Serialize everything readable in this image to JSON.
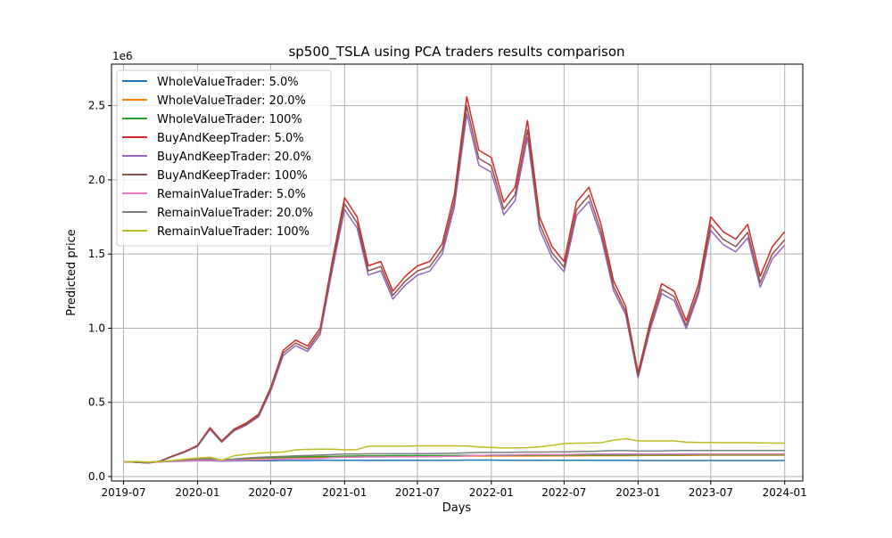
{
  "chart_data": {
    "type": "line",
    "title": "sp500_TSLA using PCA traders results comparison",
    "xlabel": "Days",
    "ylabel": "Predicted price",
    "y_offset_label": "1e6",
    "grid": true,
    "legend_position": "top-left",
    "xlim": [
      "2019-06-01",
      "2024-02-15"
    ],
    "ylim": [
      -30000,
      2780000
    ],
    "x_ticks": [
      "2019-07",
      "2020-01",
      "2020-07",
      "2021-01",
      "2021-07",
      "2022-01",
      "2022-07",
      "2023-01",
      "2023-07",
      "2024-01"
    ],
    "x_tick_dates": [
      "2019-07-01",
      "2020-01-01",
      "2020-07-01",
      "2021-01-01",
      "2021-07-01",
      "2022-01-01",
      "2022-07-01",
      "2023-01-01",
      "2023-07-01",
      "2024-01-01"
    ],
    "y_ticks": [
      0,
      500000,
      1000000,
      1500000,
      2000000,
      2500000
    ],
    "y_tick_labels": [
      "0.0",
      "0.5",
      "1.0",
      "1.5",
      "2.0",
      "2.5"
    ],
    "x": [
      "2019-07-01",
      "2019-08-01",
      "2019-09-01",
      "2019-10-01",
      "2019-11-01",
      "2019-12-01",
      "2020-01-01",
      "2020-02-01",
      "2020-03-01",
      "2020-04-01",
      "2020-05-01",
      "2020-06-01",
      "2020-07-01",
      "2020-08-01",
      "2020-09-01",
      "2020-10-01",
      "2020-11-01",
      "2020-12-01",
      "2021-01-01",
      "2021-02-01",
      "2021-03-01",
      "2021-04-01",
      "2021-05-01",
      "2021-06-01",
      "2021-07-01",
      "2021-08-01",
      "2021-09-01",
      "2021-10-01",
      "2021-11-01",
      "2021-12-01",
      "2022-01-01",
      "2022-02-01",
      "2022-03-01",
      "2022-04-01",
      "2022-05-01",
      "2022-06-01",
      "2022-07-01",
      "2022-08-01",
      "2022-09-01",
      "2022-10-01",
      "2022-11-01",
      "2022-12-01",
      "2023-01-01",
      "2023-02-01",
      "2023-03-01",
      "2023-04-01",
      "2023-05-01",
      "2023-06-01",
      "2023-07-01",
      "2023-08-01",
      "2023-09-01",
      "2023-10-01",
      "2023-11-01",
      "2023-12-01",
      "2024-01-01"
    ],
    "series": [
      {
        "name": "WholeValueTrader: 5.0%",
        "color": "#1f77b4",
        "values": [
          100000,
          99000,
          98000,
          100000,
          102000,
          104000,
          106000,
          106000,
          104000,
          105000,
          106000,
          107000,
          107000,
          108000,
          108000,
          108000,
          109000,
          109000,
          110000,
          110000,
          110000,
          110000,
          110000,
          110000,
          110000,
          110000,
          110000,
          110000,
          111000,
          111000,
          111000,
          110000,
          110000,
          110000,
          110000,
          110000,
          110000,
          110000,
          110000,
          110000,
          110000,
          110000,
          108000,
          108000,
          108000,
          108000,
          108000,
          108000,
          108000,
          108000,
          108000,
          108000,
          108000,
          108000,
          108000
        ]
      },
      {
        "name": "WholeValueTrader: 20.0%",
        "color": "#ff7f0e",
        "values": [
          100000,
          98000,
          95000,
          99000,
          105000,
          110000,
          115000,
          118000,
          108000,
          112000,
          118000,
          122000,
          124000,
          126000,
          128000,
          128000,
          130000,
          132000,
          134000,
          134000,
          136000,
          136000,
          136000,
          137000,
          137000,
          137000,
          137000,
          137000,
          138000,
          138000,
          138000,
          138000,
          139000,
          139000,
          139000,
          140000,
          140000,
          140000,
          141000,
          141000,
          141000,
          141000,
          142000,
          143000,
          143000,
          143000,
          143000,
          144000,
          144000,
          144000,
          144000,
          144000,
          144000,
          144000,
          144000
        ]
      },
      {
        "name": "WholeValueTrader: 100%",
        "color": "#2ca02c",
        "values": [
          100000,
          98000,
          95000,
          99000,
          106000,
          112000,
          118000,
          120000,
          110000,
          116000,
          122000,
          126000,
          128000,
          130000,
          132000,
          134000,
          135000,
          136000,
          138000,
          139000,
          140000,
          140000,
          141000,
          141000,
          142000,
          142000,
          142000,
          142000,
          143000,
          143000,
          143000,
          143000,
          143000,
          144000,
          144000,
          144000,
          144000,
          145000,
          145000,
          145000,
          145000,
          145000,
          146000,
          146000,
          146000,
          146000,
          147000,
          147000,
          147000,
          147000,
          147000,
          147000,
          147000,
          147000,
          147000
        ]
      },
      {
        "name": "BuyAndKeepTrader: 5.0%",
        "color": "#d62728",
        "values": [
          100000,
          96000,
          92000,
          105000,
          140000,
          170000,
          210000,
          330000,
          240000,
          320000,
          360000,
          420000,
          600000,
          850000,
          920000,
          880000,
          1000000,
          1450000,
          1880000,
          1750000,
          1420000,
          1450000,
          1250000,
          1350000,
          1420000,
          1450000,
          1570000,
          1900000,
          2560000,
          2200000,
          2150000,
          1850000,
          1950000,
          2400000,
          1750000,
          1550000,
          1450000,
          1850000,
          1950000,
          1700000,
          1320000,
          1150000,
          700000,
          1050000,
          1300000,
          1250000,
          1050000,
          1300000,
          1750000,
          1650000,
          1600000,
          1700000,
          1350000,
          1550000,
          1650000
        ]
      },
      {
        "name": "BuyAndKeepTrader: 20.0%",
        "color": "#9467bd",
        "values": [
          100000,
          96000,
          92000,
          104000,
          136000,
          165000,
          203000,
          318000,
          231000,
          308000,
          346000,
          403000,
          575000,
          815000,
          882000,
          843000,
          958000,
          1389000,
          1800000,
          1675000,
          1358000,
          1387000,
          1196000,
          1291000,
          1357000,
          1385000,
          1499000,
          1814000,
          2444000,
          2099000,
          2051000,
          1764000,
          1859000,
          2287000,
          1667000,
          1476000,
          1380000,
          1760000,
          1855000,
          1617000,
          1255000,
          1093000,
          665000,
          997000,
          1234000,
          1186000,
          996000,
          1233000,
          1659000,
          1563000,
          1515000,
          1609000,
          1277000,
          1466000,
          1560000
        ]
      },
      {
        "name": "BuyAndKeepTrader: 100%",
        "color": "#8c564b",
        "values": [
          100000,
          96000,
          92000,
          104000,
          138000,
          167000,
          206000,
          324000,
          235000,
          313000,
          352000,
          411000,
          587000,
          832000,
          900000,
          860000,
          978000,
          1418000,
          1838000,
          1710000,
          1387000,
          1416000,
          1221000,
          1318000,
          1386000,
          1415000,
          1531000,
          1853000,
          2496000,
          2144000,
          2095000,
          1802000,
          1899000,
          2337000,
          1704000,
          1509000,
          1411000,
          1799000,
          1896000,
          1652000,
          1282000,
          1117000,
          680000,
          1019000,
          1262000,
          1213000,
          1019000,
          1261000,
          1697000,
          1599000,
          1550000,
          1646000,
          1307000,
          1500000,
          1596000
        ]
      },
      {
        "name": "RemainValueTrader: 5.0%",
        "color": "#e377c2",
        "values": [
          100000,
          98000,
          96000,
          99000,
          102000,
          104000,
          108000,
          110000,
          105000,
          108000,
          110000,
          112000,
          114000,
          118000,
          120000,
          120000,
          122000,
          128000,
          130000,
          131000,
          132000,
          132000,
          133000,
          133000,
          134000,
          134000,
          135000,
          136000,
          140000,
          142000,
          145000,
          145000,
          146000,
          148000,
          148000,
          148000,
          148000,
          150000,
          152000,
          152000,
          152000,
          152000,
          152000,
          152000,
          152000,
          152000,
          152000,
          152000,
          152000,
          152000,
          152000,
          152000,
          152000,
          152000,
          152000
        ]
      },
      {
        "name": "RemainValueTrader: 20.0%",
        "color": "#7f7f7f",
        "values": [
          100000,
          98000,
          96000,
          100000,
          106000,
          112000,
          118000,
          120000,
          112000,
          118000,
          125000,
          130000,
          133000,
          136000,
          140000,
          142000,
          145000,
          148000,
          152000,
          152000,
          153000,
          153000,
          154000,
          154000,
          155000,
          155000,
          156000,
          157000,
          160000,
          162000,
          163000,
          163000,
          164000,
          165000,
          165000,
          166000,
          166000,
          168000,
          170000,
          172000,
          175000,
          175000,
          172000,
          172000,
          172000,
          175000,
          176000,
          176000,
          176000,
          176000,
          176000,
          176000,
          176000,
          176000,
          176000
        ]
      },
      {
        "name": "RemainValueTrader: 100%",
        "color": "#bcbd22",
        "values": [
          100000,
          102000,
          98000,
          100000,
          108000,
          118000,
          125000,
          130000,
          110000,
          140000,
          150000,
          158000,
          162000,
          165000,
          180000,
          183000,
          185000,
          185000,
          180000,
          182000,
          205000,
          205000,
          205000,
          205000,
          207000,
          207000,
          207000,
          207000,
          206000,
          200000,
          196000,
          193000,
          193000,
          195000,
          200000,
          210000,
          222000,
          225000,
          226000,
          228000,
          245000,
          255000,
          240000,
          240000,
          240000,
          240000,
          232000,
          230000,
          230000,
          228000,
          228000,
          228000,
          227000,
          226000,
          225000
        ]
      }
    ]
  }
}
